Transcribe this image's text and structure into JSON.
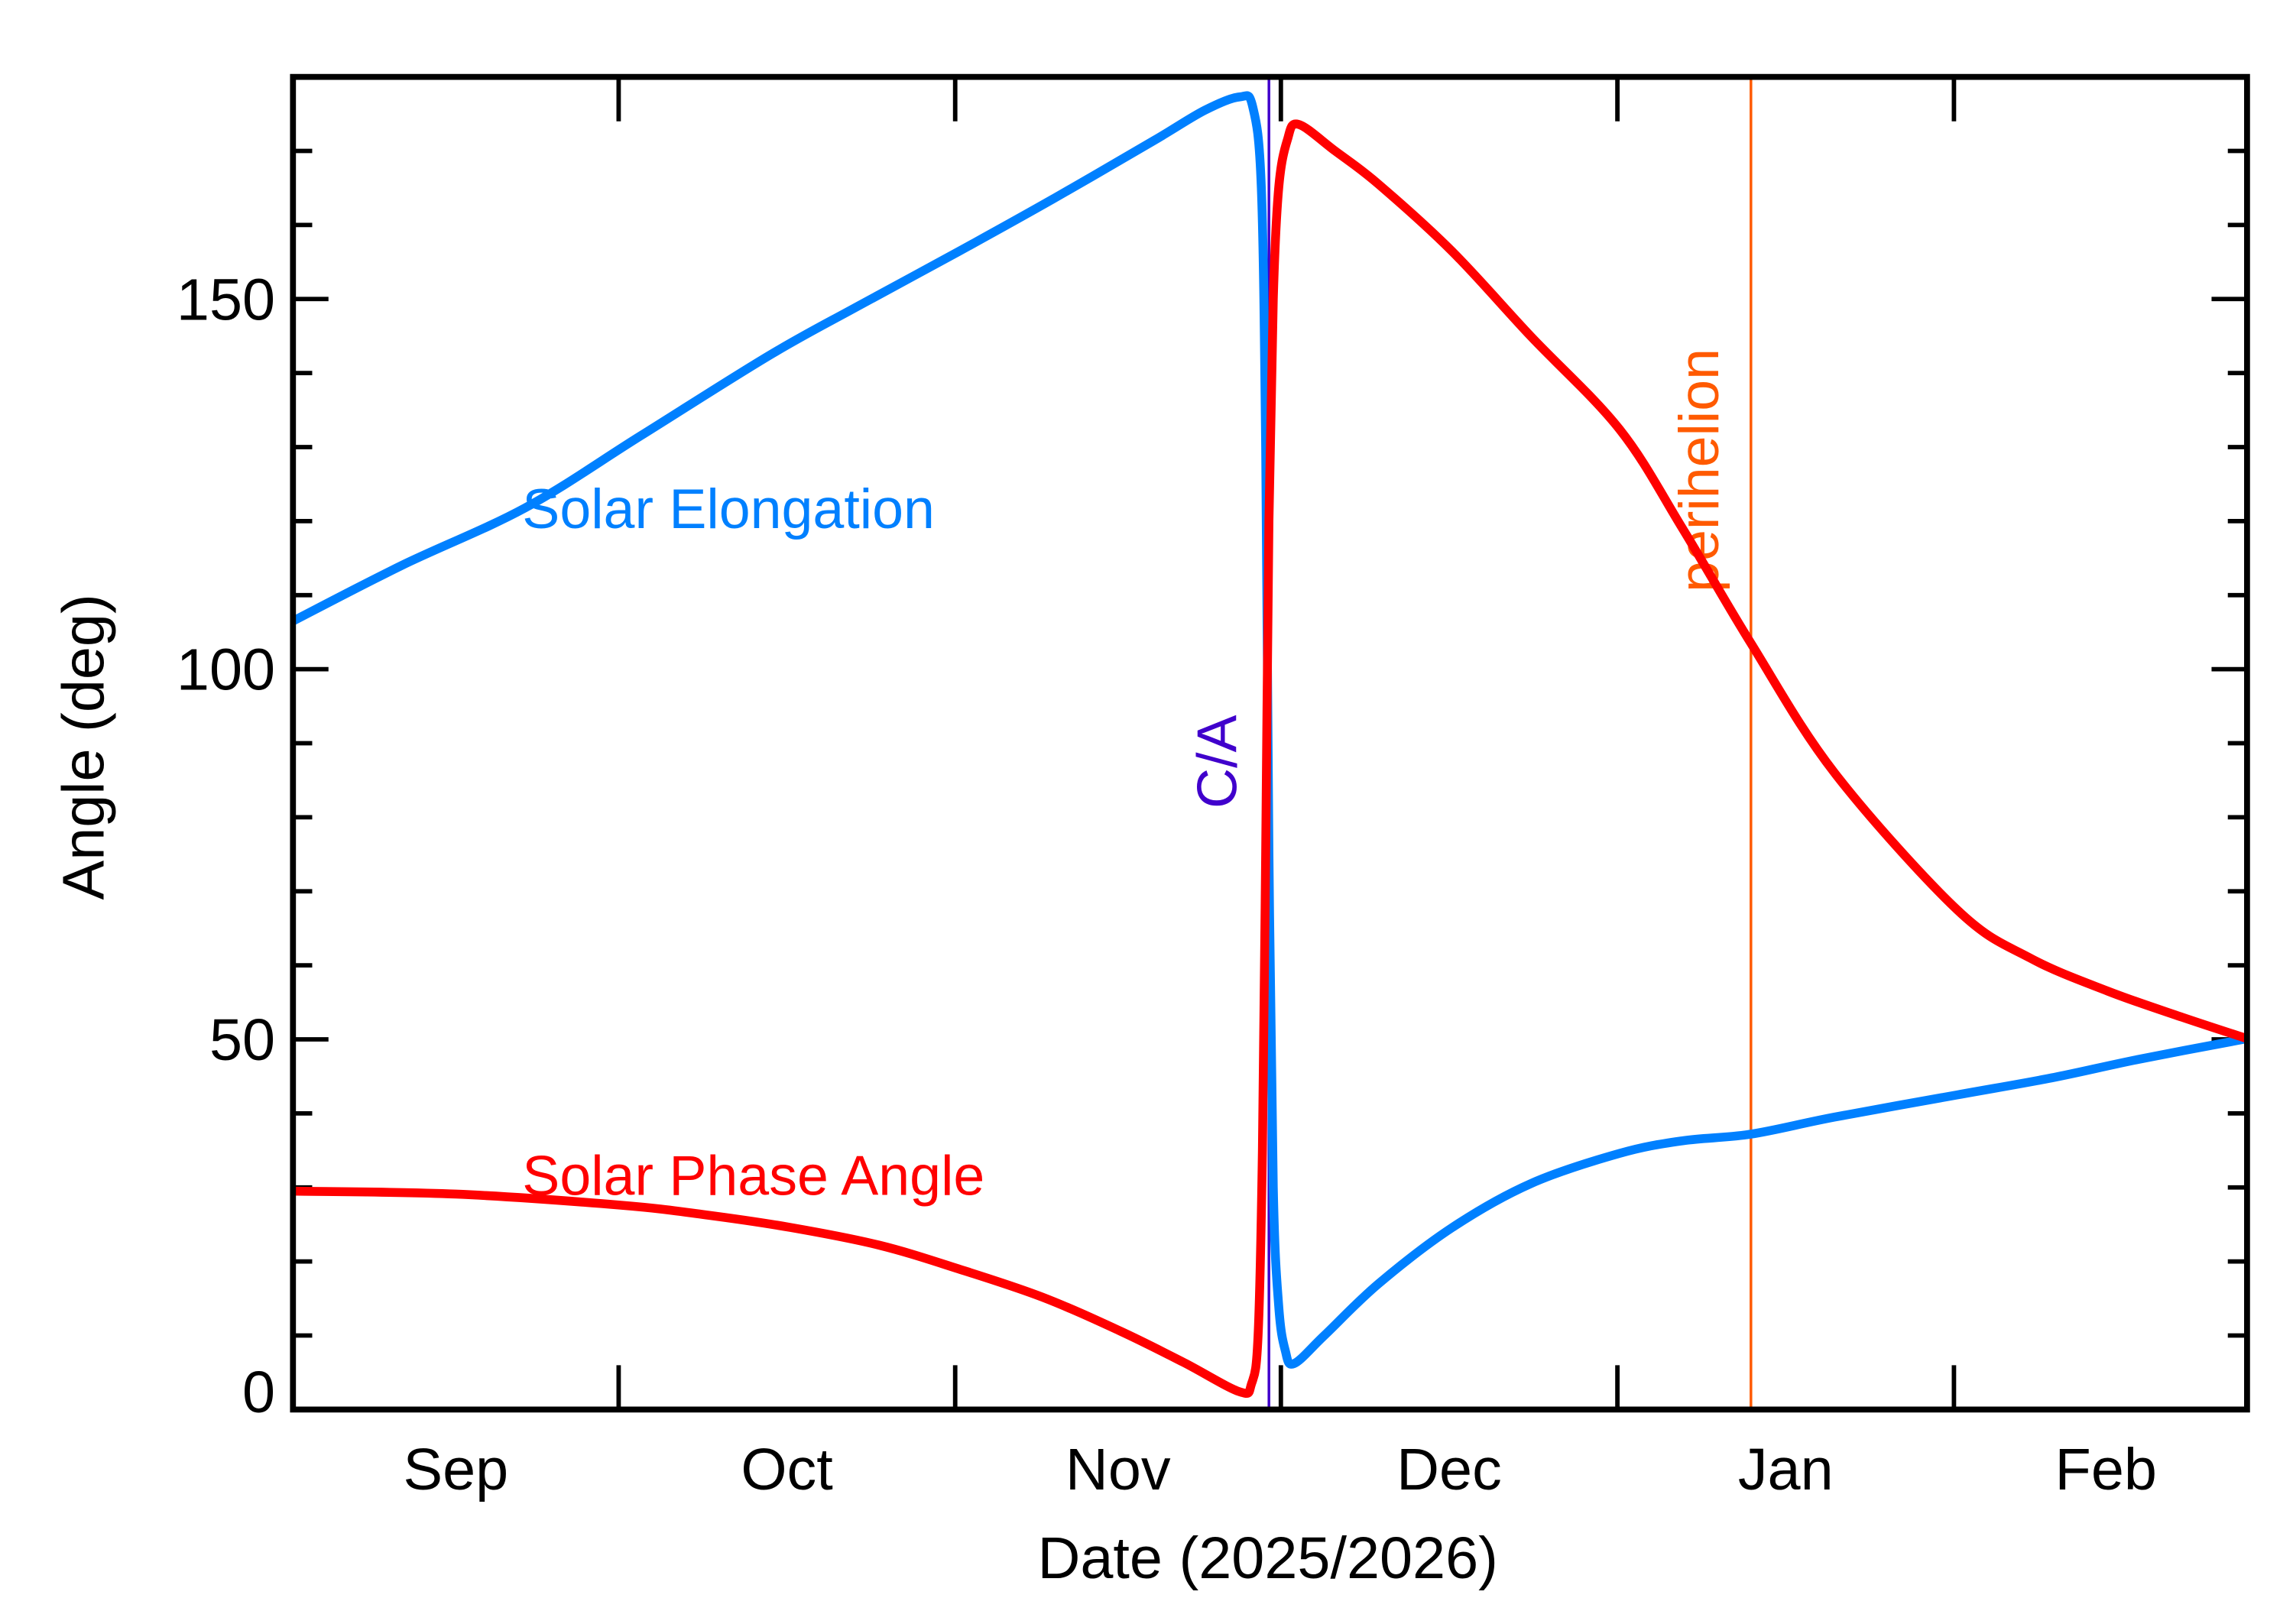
{
  "chart_data": {
    "type": "line",
    "xlabel": "Date (2025/2026)",
    "ylabel": "Angle (deg)",
    "xunit": "days since 2025-09-01",
    "xlim": [
      0,
      180
    ],
    "ylim": [
      0,
      180
    ],
    "yticks": [
      0,
      50,
      100,
      150
    ],
    "yminor_step": 10,
    "month_ticks": [
      30,
      61,
      91,
      122,
      153
    ],
    "month_labels": [
      {
        "label": "Sep",
        "day": 15
      },
      {
        "label": "Oct",
        "day": 45.5
      },
      {
        "label": "Nov",
        "day": 76
      },
      {
        "label": "Dec",
        "day": 106.5
      },
      {
        "label": "Jan",
        "day": 137.5
      },
      {
        "label": "Feb",
        "day": 167
      }
    ],
    "series": [
      {
        "name": "Solar Elongation",
        "color": "#0080ff",
        "x": [
          0,
          10,
          21.4,
          32,
          43.9,
          52,
          61.3,
          70,
          79.3,
          84,
          87.2,
          88.4,
          89.2,
          89.6,
          89.9,
          90.3,
          90.8,
          91.4,
          92.2,
          95,
          100,
          106.8,
          114,
          122.2,
          128,
          134.3,
          142,
          153.3,
          162,
          170,
          180
        ],
        "values": [
          106.5,
          114,
          121.8,
          131.5,
          142.4,
          149,
          156.4,
          163.5,
          171.4,
          175.5,
          177.3,
          176,
          165,
          130,
          75,
          30,
          14,
          8,
          6.2,
          10,
          17,
          24.6,
          30.5,
          34.6,
          36.3,
          37.2,
          39.5,
          42.5,
          44.8,
          47.3,
          50.1
        ]
      },
      {
        "name": "Solar Phase Angle",
        "color": "#ff0000",
        "x": [
          0,
          15,
          30.2,
          38,
          45.8,
          54,
          61.3,
          69,
          76.2,
          82,
          87.2,
          88.3,
          88.9,
          89.3,
          89.6,
          89.9,
          90.3,
          90.8,
          91.6,
          92.6,
          96,
          100,
          106.8,
          114,
          122.2,
          128,
          134.3,
          142,
          153.3,
          160,
          167.2,
          174,
          180
        ],
        "values": [
          29.5,
          29.1,
          27.6,
          26.3,
          24.6,
          22.2,
          19,
          15.2,
          10.6,
          6.4,
          2.4,
          3.5,
          10,
          35,
          75,
          120,
          150,
          165,
          171.5,
          173.6,
          170,
          165.5,
          156.4,
          145,
          132.4,
          119,
          103.5,
          86,
          67.5,
          61,
          56.5,
          53,
          50.1
        ]
      }
    ],
    "annotations": [
      {
        "label": "Solar Elongation",
        "color": "#0080ff",
        "day": 21,
        "angle": 120
      },
      {
        "label": "Solar Phase Angle",
        "color": "#ff0000",
        "day": 21,
        "angle": 30
      }
    ],
    "vlines": [
      {
        "label": "C/A",
        "day": 89.9,
        "color": "#4000cc"
      },
      {
        "label": "perihelion",
        "day": 134.3,
        "color": "#ff5a00"
      }
    ]
  }
}
